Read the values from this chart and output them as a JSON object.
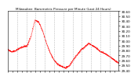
{
  "title": "Milwaukee  Barometric Pressure per Minute (Last 24 Hours)",
  "ylabel_right": true,
  "background_color": "#ffffff",
  "plot_bg_color": "#ffffff",
  "line_color": "#ff0000",
  "grid_color": "#aaaaaa",
  "ylim": [
    29.4,
    30.6
  ],
  "yticks": [
    29.4,
    29.5,
    29.6,
    29.7,
    29.8,
    29.9,
    30.0,
    30.1,
    30.2,
    30.3,
    30.4,
    30.5,
    30.6
  ],
  "num_points": 1440,
  "x_gridlines": [
    120,
    240,
    360,
    480,
    600,
    720,
    840,
    960,
    1080,
    1200,
    1320
  ]
}
